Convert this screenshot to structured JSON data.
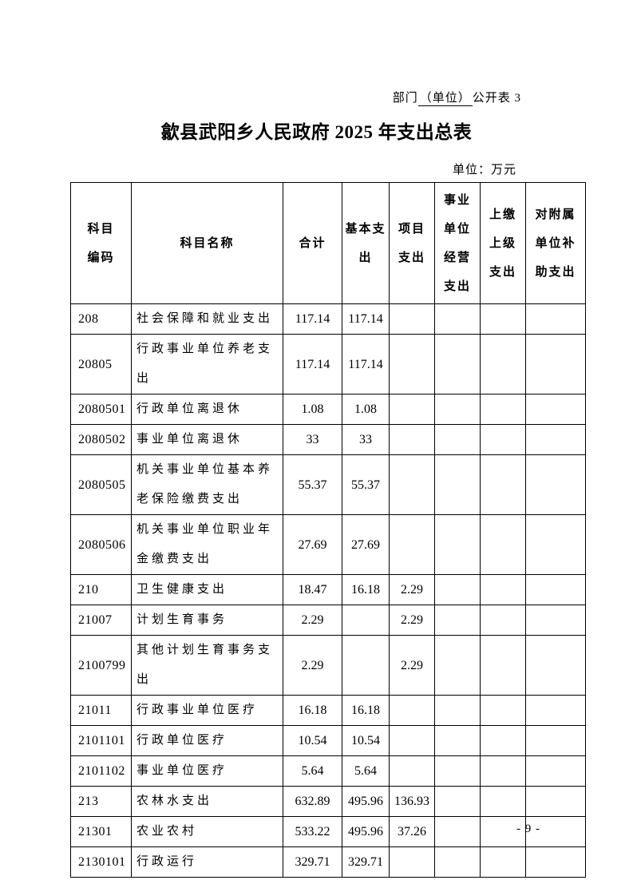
{
  "page": {
    "header_note": {
      "prefix": "部门",
      "underlined": "（单位）",
      "suffix": "公开表 3"
    },
    "title": "歙县武阳乡人民政府 2025 年支出总表",
    "unit_label": "单位：万元",
    "page_number": "- 9 -"
  },
  "table": {
    "columns": [
      {
        "key": "code",
        "label": "科目编码",
        "lines": [
          "科目",
          "编码"
        ]
      },
      {
        "key": "name",
        "label": "科目名称",
        "lines": [
          "科目名称"
        ]
      },
      {
        "key": "total",
        "label": "合计",
        "lines": [
          "合计"
        ]
      },
      {
        "key": "basic",
        "label": "基本支出",
        "lines": [
          "基本支",
          "出"
        ]
      },
      {
        "key": "project",
        "label": "项目支出",
        "lines": [
          "项目",
          "支出"
        ]
      },
      {
        "key": "operating",
        "label": "事业单位经营支出",
        "lines": [
          "事业",
          "单位",
          "经营",
          "支出"
        ]
      },
      {
        "key": "upward",
        "label": "上缴上级支出",
        "lines": [
          "上缴",
          "上级",
          "支出"
        ]
      },
      {
        "key": "subsidy",
        "label": "对附属单位补助支出",
        "lines": [
          "对附属",
          "单位补",
          "助支出"
        ]
      }
    ],
    "rows": [
      {
        "code": "208",
        "name": "社会保障和就业支出",
        "total": "117.14",
        "basic": "117.14",
        "project": "",
        "operating": "",
        "upward": "",
        "subsidy": ""
      },
      {
        "code": "20805",
        "name": "行政事业单位养老支出",
        "total": "117.14",
        "basic": "117.14",
        "project": "",
        "operating": "",
        "upward": "",
        "subsidy": ""
      },
      {
        "code": "2080501",
        "name": "行政单位离退休",
        "total": "1.08",
        "basic": "1.08",
        "project": "",
        "operating": "",
        "upward": "",
        "subsidy": ""
      },
      {
        "code": "2080502",
        "name": "事业单位离退休",
        "total": "33",
        "basic": "33",
        "project": "",
        "operating": "",
        "upward": "",
        "subsidy": ""
      },
      {
        "code": "2080505",
        "name": "机关事业单位基本养老保险缴费支出",
        "total": "55.37",
        "basic": "55.37",
        "project": "",
        "operating": "",
        "upward": "",
        "subsidy": ""
      },
      {
        "code": "2080506",
        "name": "机关事业单位职业年金缴费支出",
        "total": "27.69",
        "basic": "27.69",
        "project": "",
        "operating": "",
        "upward": "",
        "subsidy": ""
      },
      {
        "code": "210",
        "name": "卫生健康支出",
        "total": "18.47",
        "basic": "16.18",
        "project": "2.29",
        "operating": "",
        "upward": "",
        "subsidy": ""
      },
      {
        "code": "21007",
        "name": "计划生育事务",
        "total": "2.29",
        "basic": "",
        "project": "2.29",
        "operating": "",
        "upward": "",
        "subsidy": ""
      },
      {
        "code": "2100799",
        "name": "其他计划生育事务支出",
        "total": "2.29",
        "basic": "",
        "project": "2.29",
        "operating": "",
        "upward": "",
        "subsidy": ""
      },
      {
        "code": "21011",
        "name": "行政事业单位医疗",
        "total": "16.18",
        "basic": "16.18",
        "project": "",
        "operating": "",
        "upward": "",
        "subsidy": ""
      },
      {
        "code": "2101101",
        "name": "行政单位医疗",
        "total": "10.54",
        "basic": "10.54",
        "project": "",
        "operating": "",
        "upward": "",
        "subsidy": ""
      },
      {
        "code": "2101102",
        "name": "事业单位医疗",
        "total": "5.64",
        "basic": "5.64",
        "project": "",
        "operating": "",
        "upward": "",
        "subsidy": ""
      },
      {
        "code": "213",
        "name": "农林水支出",
        "total": "632.89",
        "basic": "495.96",
        "project": "136.93",
        "operating": "",
        "upward": "",
        "subsidy": ""
      },
      {
        "code": "21301",
        "name": "农业农村",
        "total": "533.22",
        "basic": "495.96",
        "project": "37.26",
        "operating": "",
        "upward": "",
        "subsidy": ""
      },
      {
        "code": "2130101",
        "name": "行政运行",
        "total": "329.71",
        "basic": "329.71",
        "project": "",
        "operating": "",
        "upward": "",
        "subsidy": ""
      }
    ]
  }
}
